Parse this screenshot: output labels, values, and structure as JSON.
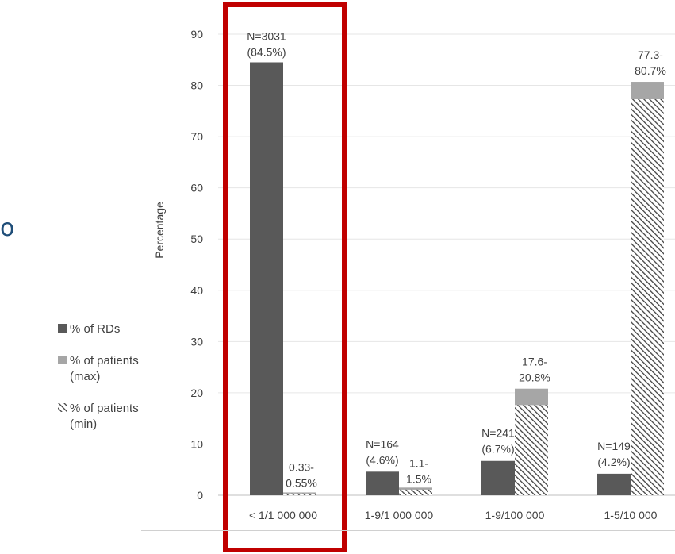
{
  "stray_text": "o",
  "legend": [
    {
      "label": "% of RDs",
      "style": "solid",
      "color": "#595959"
    },
    {
      "label": "% of patients (max)",
      "style": "solid",
      "color": "#a6a6a6"
    },
    {
      "label": "% of patients (min)",
      "style": "hatched",
      "color": "#404040"
    }
  ],
  "highlight_color": "#c00000",
  "chart_data": {
    "type": "bar",
    "ylabel": "Percentage",
    "ylim": [
      0,
      90
    ],
    "yticks": [
      0,
      10,
      20,
      30,
      40,
      50,
      60,
      70,
      80,
      90
    ],
    "grid": true,
    "legend_position": "left",
    "categories": [
      "< 1/1 000 000",
      "1-9/1 000 000",
      "1-9/100 000",
      "1-5/10 000"
    ],
    "series": [
      {
        "name": "% of RDs",
        "values": [
          84.5,
          4.6,
          6.7,
          4.2
        ]
      },
      {
        "name": "% of patients (max)",
        "values": [
          0.55,
          1.5,
          20.8,
          80.7
        ]
      },
      {
        "name": "% of patients (min)",
        "values": [
          0.33,
          1.1,
          17.6,
          77.3
        ]
      }
    ],
    "rd_labels": [
      [
        "N=3031",
        "(84.5%)"
      ],
      [
        "N=164",
        "(4.6%)"
      ],
      [
        "N=241",
        "(6.7%)"
      ],
      [
        "N=149",
        "(4.2%)"
      ]
    ],
    "patient_labels": [
      [
        "0.33-",
        "0.55%"
      ],
      [
        "1.1-",
        "1.5%"
      ],
      [
        "17.6-",
        "20.8%"
      ],
      [
        "77.3-",
        "80.7%"
      ]
    ],
    "highlighted_category": "< 1/1 000 000"
  }
}
